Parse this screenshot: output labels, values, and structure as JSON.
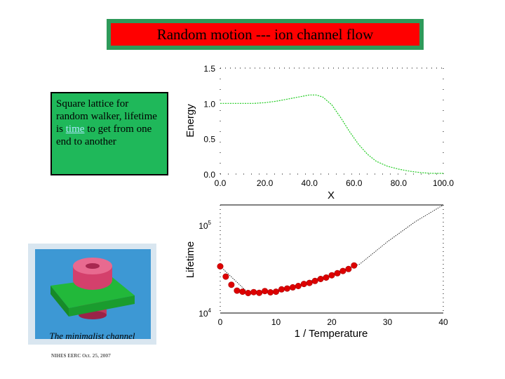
{
  "slide": {
    "title": "Random motion --- ion channel flow",
    "info_box": {
      "text_before": "Square lattice for random walker, lifetime is ",
      "link_text": "time",
      "text_after": " to get from one end to another"
    },
    "channel_caption": "The minimalist channel",
    "footer": "NIHES EERC Oct. 25, 2007"
  },
  "colors": {
    "title_frame": "#2e9a5a",
    "title_fill": "#ff0000",
    "info_box": "#1fb85a",
    "energy_line": "#22cc22",
    "lifetime_points": "#dd0000"
  },
  "chart_data": [
    {
      "type": "line",
      "ylabel": "Energy",
      "xlabel": "X",
      "xlim": [
        0,
        100
      ],
      "ylim": [
        0,
        1.5
      ],
      "x_ticks": [
        "0.0",
        "20.0",
        "40.0",
        "60.0",
        "80.0",
        "100.0"
      ],
      "y_ticks": [
        "0.0",
        "0.5",
        "1.0",
        "1.5"
      ],
      "x": [
        0,
        5,
        10,
        15,
        20,
        25,
        30,
        35,
        40,
        43,
        46,
        50,
        54,
        58,
        62,
        66,
        70,
        75,
        80,
        85,
        90,
        95,
        100
      ],
      "y": [
        1.0,
        1.0,
        1.0,
        1.0,
        1.01,
        1.03,
        1.06,
        1.09,
        1.12,
        1.12,
        1.09,
        0.98,
        0.8,
        0.6,
        0.42,
        0.28,
        0.18,
        0.11,
        0.07,
        0.04,
        0.02,
        0.01,
        0.01
      ]
    },
    {
      "type": "scatter",
      "ylabel": "Lifetime",
      "xlabel": "1 / Temperature",
      "xlim": [
        0,
        40
      ],
      "ylim": [
        10000,
        170000
      ],
      "y_scale": "log",
      "x_ticks": [
        "0",
        "10",
        "20",
        "30",
        "40"
      ],
      "y_ticks": [
        {
          "base": "10",
          "exp": "4"
        },
        {
          "base": "10",
          "exp": "5"
        }
      ],
      "points_x": [
        0,
        1,
        2,
        3,
        4,
        5,
        6,
        7,
        8,
        9,
        10,
        11,
        12,
        13,
        14,
        15,
        16,
        17,
        18,
        19,
        20,
        21,
        22,
        23,
        24
      ],
      "points_y": [
        34000,
        26000,
        21000,
        18000,
        17500,
        16900,
        17300,
        17000,
        17800,
        17200,
        17500,
        18600,
        19000,
        19600,
        20300,
        21400,
        22000,
        23200,
        24400,
        25300,
        26900,
        28400,
        30100,
        31700,
        34800
      ],
      "fit_x": [
        0,
        5,
        10,
        15,
        20,
        25,
        30,
        35,
        40
      ],
      "fit_y": [
        34000,
        17000,
        17500,
        21800,
        28000,
        36000,
        65000,
        110000,
        170000
      ]
    }
  ]
}
